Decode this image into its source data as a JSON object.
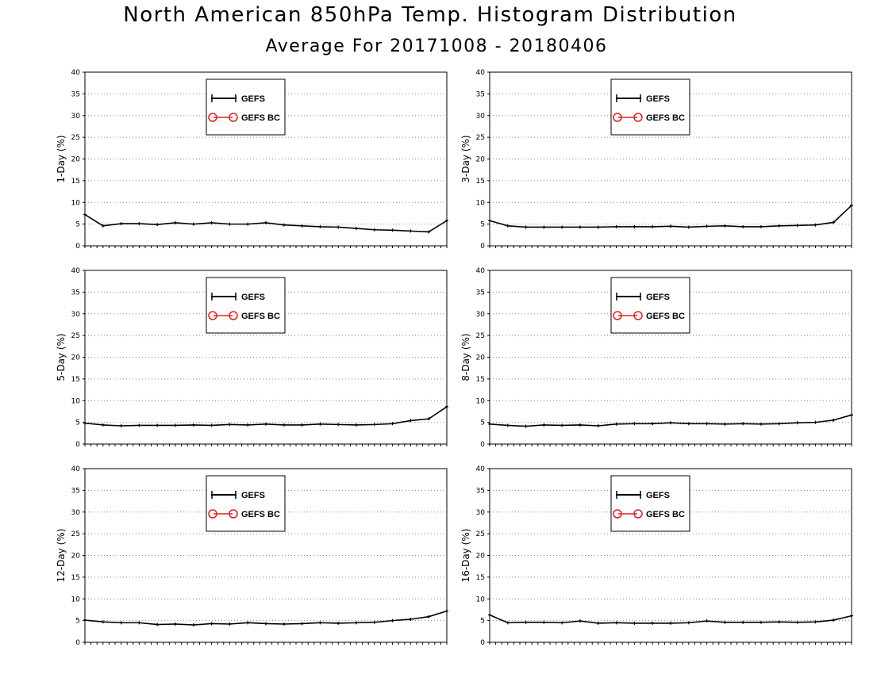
{
  "title": "North American 850hPa Temp. Histogram Distribution",
  "subtitle": "Average For 20171008 - 20180406",
  "legend": [
    "GEFS",
    "GEFS BC"
  ],
  "colors": {
    "series1": "#000000",
    "series2": "#e02020",
    "grid": "#888888"
  },
  "chart_data": [
    {
      "type": "line",
      "ylabel": "1-Day (%)",
      "ylim": [
        0,
        40
      ],
      "yticks": [
        0,
        5,
        10,
        15,
        20,
        25,
        30,
        35,
        40
      ],
      "grid": true,
      "legend_position": "top-center",
      "x": [
        1,
        2,
        3,
        4,
        5,
        6,
        7,
        8,
        9,
        10,
        11,
        12,
        13,
        14,
        15,
        16,
        17,
        18,
        19,
        20,
        21
      ],
      "series": [
        {
          "name": "GEFS",
          "values": [
            7.2,
            4.6,
            5.1,
            5.1,
            4.9,
            5.3,
            5.0,
            5.3,
            5.0,
            5.0,
            5.3,
            4.8,
            4.6,
            4.4,
            4.3,
            4.0,
            3.7,
            3.6,
            3.4,
            3.2,
            5.8
          ]
        }
      ]
    },
    {
      "type": "line",
      "ylabel": "3-Day (%)",
      "ylim": [
        0,
        40
      ],
      "yticks": [
        0,
        5,
        10,
        15,
        20,
        25,
        30,
        35,
        40
      ],
      "grid": true,
      "legend_position": "top-center",
      "x": [
        1,
        2,
        3,
        4,
        5,
        6,
        7,
        8,
        9,
        10,
        11,
        12,
        13,
        14,
        15,
        16,
        17,
        18,
        19,
        20,
        21
      ],
      "series": [
        {
          "name": "GEFS",
          "values": [
            5.8,
            4.6,
            4.3,
            4.3,
            4.3,
            4.3,
            4.3,
            4.4,
            4.4,
            4.4,
            4.5,
            4.3,
            4.5,
            4.6,
            4.4,
            4.4,
            4.6,
            4.7,
            4.8,
            5.4,
            9.3
          ]
        }
      ]
    },
    {
      "type": "line",
      "ylabel": "5-Day (%)",
      "ylim": [
        0,
        40
      ],
      "yticks": [
        0,
        5,
        10,
        15,
        20,
        25,
        30,
        35,
        40
      ],
      "grid": true,
      "legend_position": "top-center",
      "x": [
        1,
        2,
        3,
        4,
        5,
        6,
        7,
        8,
        9,
        10,
        11,
        12,
        13,
        14,
        15,
        16,
        17,
        18,
        19,
        20,
        21
      ],
      "series": [
        {
          "name": "GEFS",
          "values": [
            4.8,
            4.4,
            4.2,
            4.3,
            4.3,
            4.3,
            4.4,
            4.3,
            4.5,
            4.4,
            4.6,
            4.4,
            4.4,
            4.6,
            4.5,
            4.4,
            4.5,
            4.7,
            5.4,
            5.8,
            8.6
          ]
        }
      ]
    },
    {
      "type": "line",
      "ylabel": "8-Day (%)",
      "ylim": [
        0,
        40
      ],
      "yticks": [
        0,
        5,
        10,
        15,
        20,
        25,
        30,
        35,
        40
      ],
      "grid": true,
      "legend_position": "top-center",
      "x": [
        1,
        2,
        3,
        4,
        5,
        6,
        7,
        8,
        9,
        10,
        11,
        12,
        13,
        14,
        15,
        16,
        17,
        18,
        19,
        20,
        21
      ],
      "series": [
        {
          "name": "GEFS",
          "values": [
            4.6,
            4.3,
            4.1,
            4.4,
            4.3,
            4.4,
            4.2,
            4.6,
            4.7,
            4.7,
            4.9,
            4.7,
            4.7,
            4.6,
            4.7,
            4.6,
            4.7,
            4.9,
            5.0,
            5.5,
            6.7
          ]
        }
      ]
    },
    {
      "type": "line",
      "ylabel": "12-Day (%)",
      "ylim": [
        0,
        40
      ],
      "yticks": [
        0,
        5,
        10,
        15,
        20,
        25,
        30,
        35,
        40
      ],
      "grid": true,
      "legend_position": "top-center",
      "x": [
        1,
        2,
        3,
        4,
        5,
        6,
        7,
        8,
        9,
        10,
        11,
        12,
        13,
        14,
        15,
        16,
        17,
        18,
        19,
        20,
        21
      ],
      "series": [
        {
          "name": "GEFS",
          "values": [
            5.1,
            4.7,
            4.5,
            4.5,
            4.1,
            4.2,
            4.0,
            4.3,
            4.2,
            4.5,
            4.3,
            4.2,
            4.3,
            4.5,
            4.4,
            4.5,
            4.6,
            5.0,
            5.3,
            5.9,
            7.2
          ]
        }
      ]
    },
    {
      "type": "line",
      "ylabel": "16-Day (%)",
      "ylim": [
        0,
        40
      ],
      "yticks": [
        0,
        5,
        10,
        15,
        20,
        25,
        30,
        35,
        40
      ],
      "grid": true,
      "legend_position": "top-center",
      "x": [
        1,
        2,
        3,
        4,
        5,
        6,
        7,
        8,
        9,
        10,
        11,
        12,
        13,
        14,
        15,
        16,
        17,
        18,
        19,
        20,
        21
      ],
      "series": [
        {
          "name": "GEFS",
          "values": [
            6.3,
            4.5,
            4.6,
            4.6,
            4.5,
            4.9,
            4.4,
            4.5,
            4.4,
            4.4,
            4.4,
            4.5,
            4.9,
            4.6,
            4.6,
            4.6,
            4.7,
            4.6,
            4.7,
            5.1,
            6.1
          ]
        }
      ]
    }
  ]
}
